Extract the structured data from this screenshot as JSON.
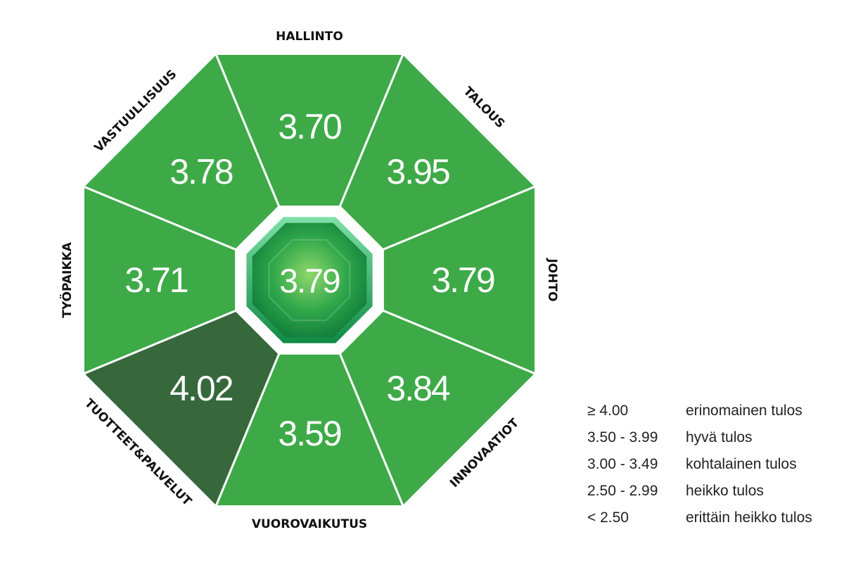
{
  "center": {
    "value": "3.79"
  },
  "segments": [
    {
      "id": "hallinto",
      "label": "HALLINTO",
      "value": "3.70",
      "color": "#3daa47"
    },
    {
      "id": "talous",
      "label": "TALOUS",
      "value": "3.95",
      "color": "#3daa47"
    },
    {
      "id": "johto",
      "label": "JOHTO",
      "value": "3.79",
      "color": "#3daa47"
    },
    {
      "id": "innovaatiot",
      "label": "INNOVAATIOT",
      "value": "3.84",
      "color": "#3daa47"
    },
    {
      "id": "vuorovaikutus",
      "label": "VUOROVAIKUTUS",
      "value": "3.59",
      "color": "#3daa47"
    },
    {
      "id": "tuotteet",
      "label": "TUOTTEET&PALVELUT",
      "value": "4.02",
      "color": "#36683c"
    },
    {
      "id": "tyopaikka",
      "label": "TYÖPAIKKA",
      "value": "3.71",
      "color": "#3daa47"
    },
    {
      "id": "vastuullisuus",
      "label": "VASTUULLISUUS",
      "value": "3.78",
      "color": "#3daa47"
    }
  ],
  "legend": [
    {
      "range": "≥ 4.00",
      "desc": "erinomainen tulos"
    },
    {
      "range": "3.50 - 3.99",
      "desc": "hyvä tulos"
    },
    {
      "range": "3.00 - 3.49",
      "desc": "kohtalainen tulos"
    },
    {
      "range": "2.50 - 2.99",
      "desc": "heikko tulos"
    },
    {
      "range": "< 2.50",
      "desc": "erittäin heikko tulos"
    }
  ]
}
